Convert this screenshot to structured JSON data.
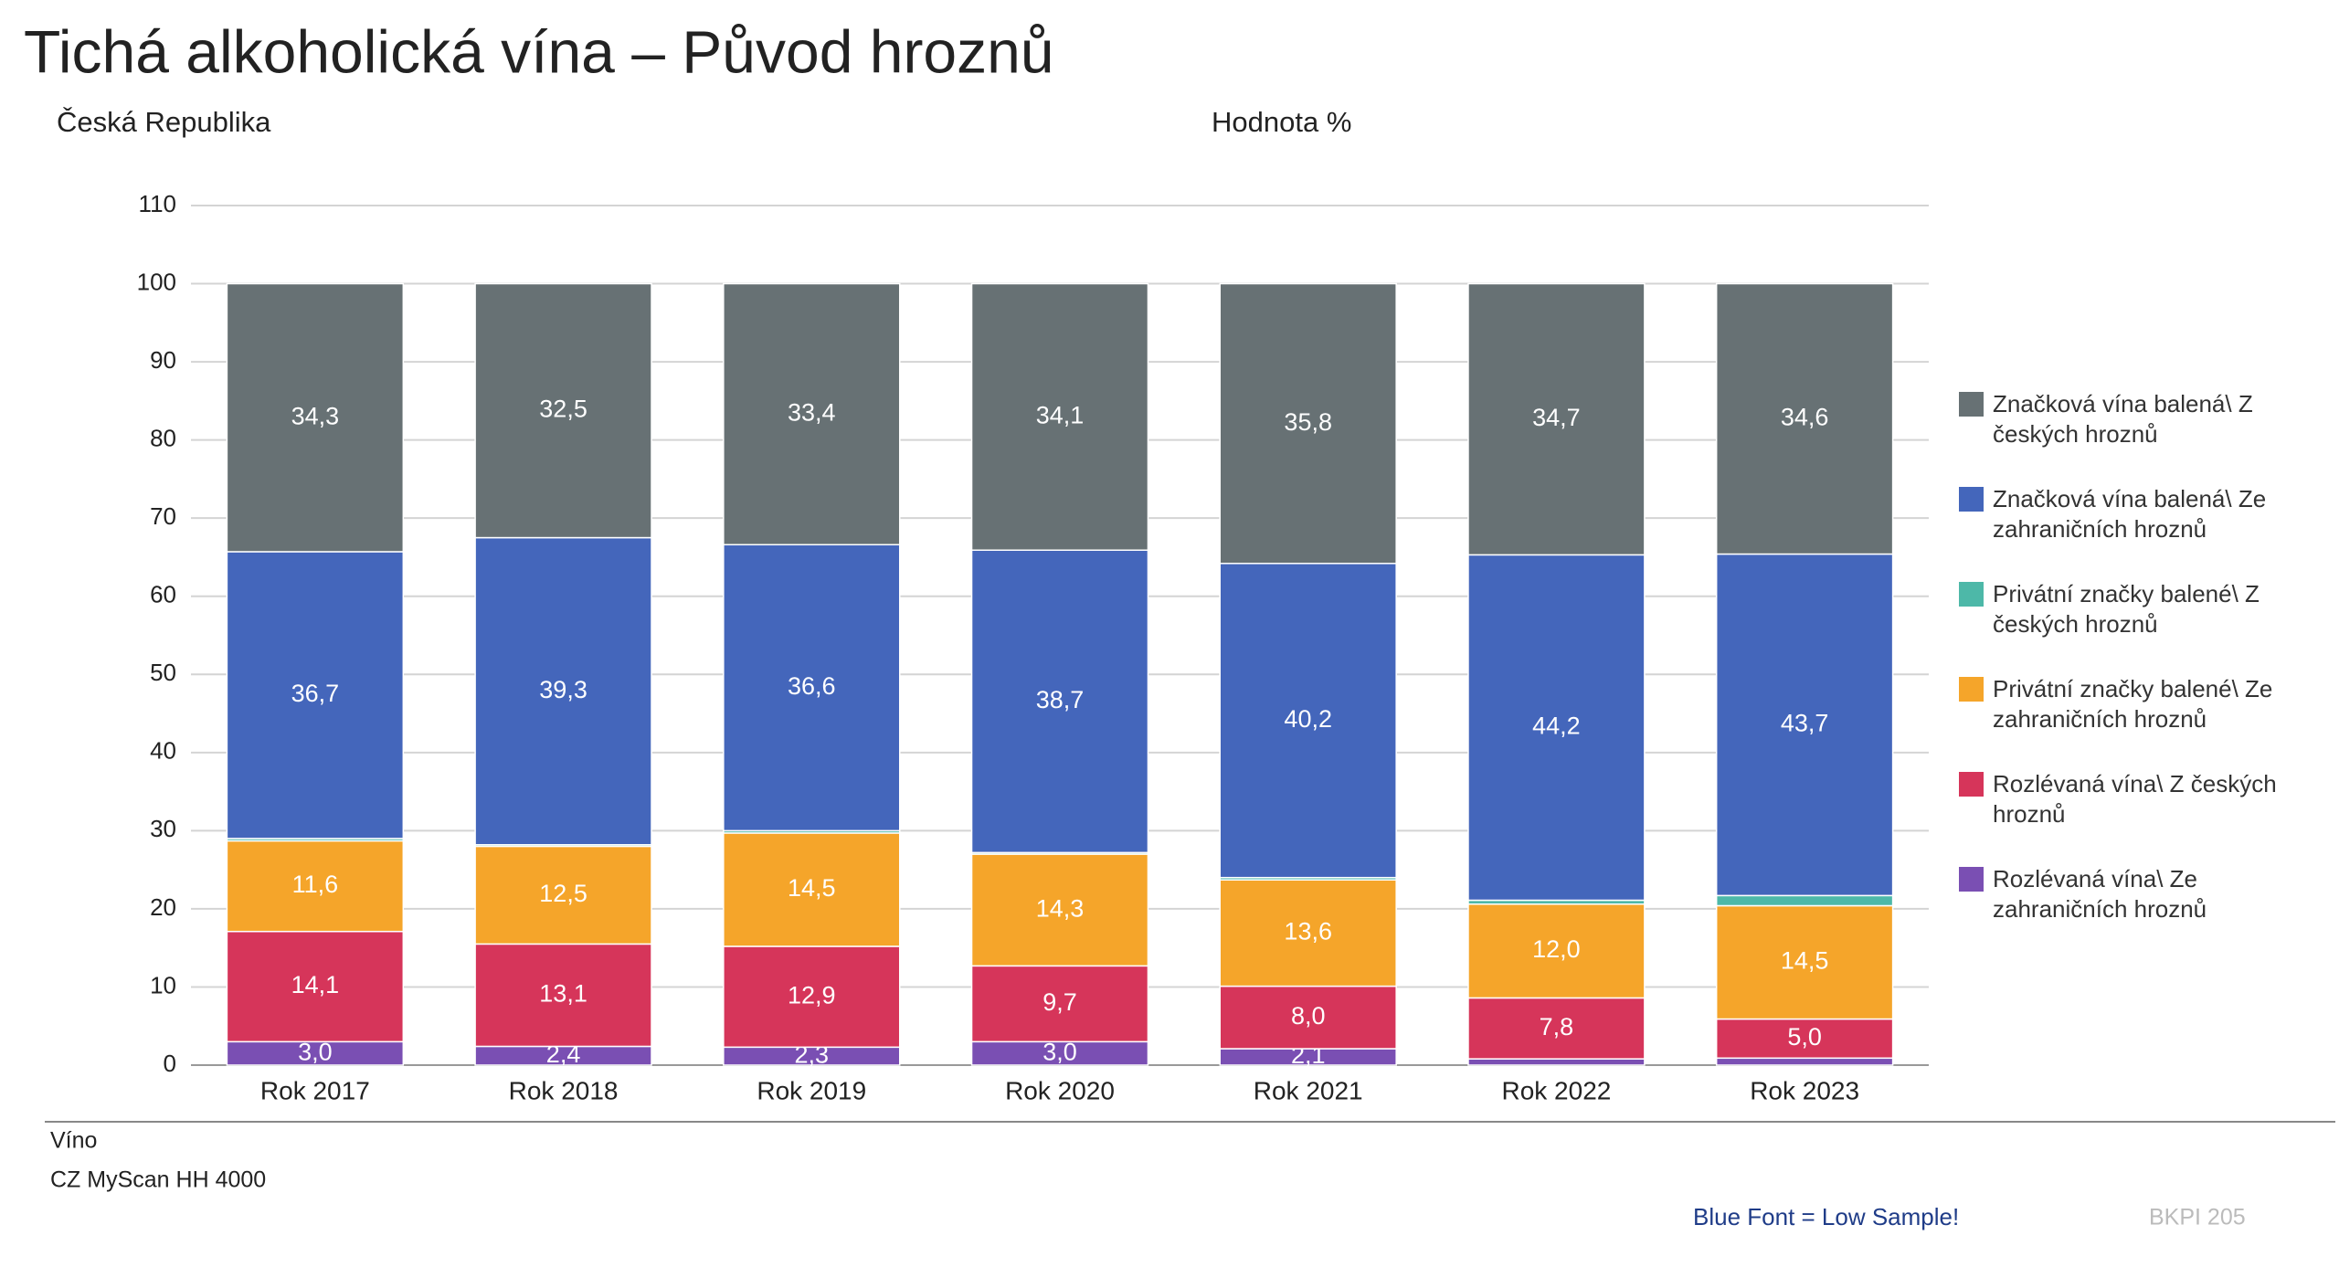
{
  "chart_data": {
    "type": "stacked_bar",
    "title": "Tichá alkoholická vína – Původ hroznů",
    "subtitle": "Česká Republika",
    "ylabel": "Hodnota %",
    "categories": [
      "Rok 2017",
      "Rok 2018",
      "Rok 2019",
      "Rok 2020",
      "Rok 2021",
      "Rok 2022",
      "Rok 2023"
    ],
    "ylim": [
      0,
      110
    ],
    "yticks": [
      0,
      10,
      20,
      30,
      40,
      50,
      60,
      70,
      80,
      90,
      100,
      110
    ],
    "grid": true,
    "legend": "right",
    "series": [
      {
        "name": "Značková vína balená\\ Z českých hroznů",
        "color": "#677174",
        "values": [
          34.3,
          32.5,
          33.4,
          34.1,
          35.8,
          34.7,
          34.6
        ],
        "value_labels": [
          "34,3",
          "32,5",
          "33,4",
          "34,1",
          "35,8",
          "34,7",
          "34,6"
        ]
      },
      {
        "name": "Značková vína balená\\ Ze zahraničních hroznů",
        "color": "#4466bb",
        "values": [
          36.7,
          39.3,
          36.6,
          38.7,
          40.2,
          44.2,
          43.7
        ],
        "value_labels": [
          "36,7",
          "39,3",
          "36,6",
          "38,7",
          "40,2",
          "44,2",
          "43,7"
        ]
      },
      {
        "name": "Privátní značky balené\\ Z českých hroznů",
        "color": "#4db8a8",
        "values": [
          0.3,
          0.2,
          0.3,
          0.2,
          0.3,
          0.5,
          1.3
        ],
        "value_labels": [
          null,
          null,
          null,
          null,
          null,
          null,
          null
        ]
      },
      {
        "name": "Privátní značky balené\\ Ze zahraničních hroznů",
        "color": "#f5a52a",
        "values": [
          11.6,
          12.5,
          14.5,
          14.3,
          13.6,
          12.0,
          14.5
        ],
        "value_labels": [
          "11,6",
          "12,5",
          "14,5",
          "14,3",
          "13,6",
          "12,0",
          "14,5"
        ]
      },
      {
        "name": "Rozlévaná vína\\ Z českých hroznů",
        "color": "#d6355a",
        "values": [
          14.1,
          13.1,
          12.9,
          9.7,
          8.0,
          7.8,
          5.0
        ],
        "value_labels": [
          "14,1",
          "13,1",
          "12,9",
          "9,7",
          "8,0",
          "7,8",
          "5,0"
        ]
      },
      {
        "name": "Rozlévaná vína\\ Ze zahraničních hroznů",
        "color": "#7a4fb3",
        "values": [
          3.0,
          2.4,
          2.3,
          3.0,
          2.1,
          0.8,
          0.9
        ],
        "value_labels": [
          "3,0",
          "2,4",
          "2,3",
          "3,0",
          "2,1",
          null,
          null
        ]
      }
    ],
    "footer": [
      "Víno",
      "CZ MyScan HH 4000"
    ],
    "note": "Blue Font = Low Sample!",
    "page_id": "BKPI 205"
  }
}
